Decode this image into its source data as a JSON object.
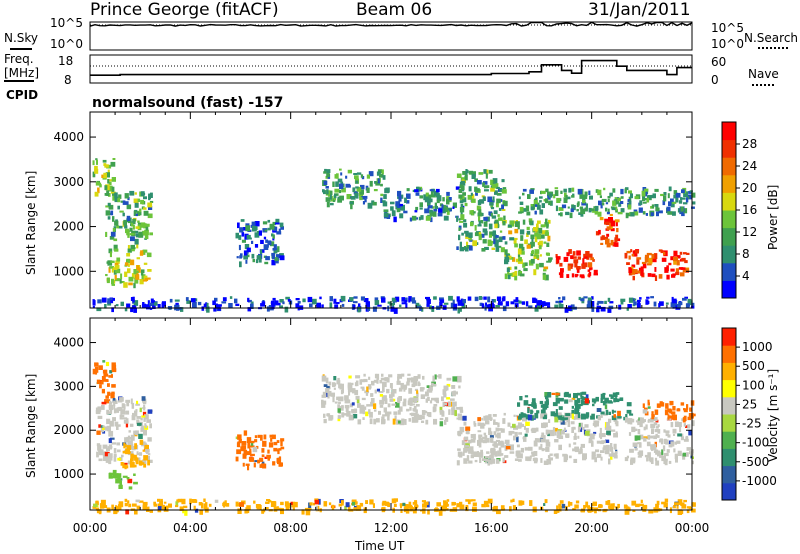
{
  "header": {
    "station": "Prince George (fitACF)",
    "beam": "Beam 06",
    "date": "31/Jan/2011"
  },
  "sky_panel": {
    "left_label": "N.Sky",
    "left_ticks": [
      "10^5",
      "10^0"
    ],
    "right_ticks": [
      "10^5",
      "10^0"
    ],
    "right_label": "N.Search",
    "series": [
      {
        "name": "N.Sky",
        "level": 0.88
      },
      {
        "name": "N.Search",
        "style": "dotted"
      }
    ]
  },
  "freq_panel": {
    "left_label_line1": "Freq.",
    "left_label_line2": "[MHz]",
    "left_ticks": [
      "18",
      "8"
    ],
    "right_ticks": [
      "60",
      "0"
    ],
    "right_label": "Nave",
    "cpid_label": "CPID",
    "mode_text": "normalsound (fast) -157"
  },
  "chart_data": [
    {
      "type": "heatmap",
      "name": "power",
      "ylabel": "Slant Range [km]",
      "yticks": [
        1000,
        2000,
        3000,
        4000
      ],
      "ylim": [
        180,
        4560
      ],
      "xlim": [
        0,
        24
      ],
      "colorbar": {
        "label": "Power [dB]",
        "ticks": [
          "28",
          "24",
          "20",
          "16",
          "12",
          "8",
          "4"
        ],
        "colors": [
          "#0000ff",
          "#1f4fbf",
          "#2f8f6f",
          "#3fa04f",
          "#6cc43a",
          "#d8d80f",
          "#f0a000",
          "#f06a00",
          "#f03000",
          "#ff0000"
        ]
      },
      "echo_regions": [
        {
          "t0": 0.1,
          "t1": 0.9,
          "r0": 2700,
          "r1": 3600,
          "level": 0.45
        },
        {
          "t0": 0.6,
          "t1": 2.4,
          "r0": 1700,
          "r1": 2800,
          "level": 0.35
        },
        {
          "t0": 0.6,
          "t1": 2.3,
          "r0": 700,
          "r1": 1600,
          "level": 0.5
        },
        {
          "t0": 5.8,
          "t1": 7.6,
          "r0": 1200,
          "r1": 2200,
          "level": 0.2
        },
        {
          "t0": 9.2,
          "t1": 11.7,
          "r0": 2500,
          "r1": 3300,
          "level": 0.3
        },
        {
          "t0": 11.7,
          "t1": 14.8,
          "r0": 2200,
          "r1": 2900,
          "level": 0.25
        },
        {
          "t0": 14.6,
          "t1": 16.5,
          "r0": 1500,
          "r1": 3300,
          "level": 0.35
        },
        {
          "t0": 16.5,
          "t1": 18.3,
          "r0": 900,
          "r1": 2200,
          "level": 0.45
        },
        {
          "t0": 17.0,
          "t1": 21.5,
          "r0": 2300,
          "r1": 2900,
          "level": 0.3
        },
        {
          "t0": 18.5,
          "t1": 20.1,
          "r0": 900,
          "r1": 1500,
          "level": 0.95
        },
        {
          "t0": 20.1,
          "t1": 21.0,
          "r0": 1600,
          "r1": 2300,
          "level": 0.8
        },
        {
          "t0": 21.3,
          "t1": 23.8,
          "r0": 900,
          "r1": 1500,
          "level": 0.85
        },
        {
          "t0": 21.5,
          "t1": 24.0,
          "r0": 2300,
          "r1": 2900,
          "level": 0.3
        },
        {
          "t0": 0.0,
          "t1": 24.0,
          "r0": 180,
          "r1": 450,
          "level": 0.1
        }
      ]
    },
    {
      "type": "heatmap",
      "name": "velocity",
      "ylabel": "Slant Range [km]",
      "yticks": [
        1000,
        2000,
        3000,
        4000
      ],
      "ylim": [
        180,
        4560
      ],
      "xlim": [
        0,
        24
      ],
      "xlabel": "Time UT",
      "xticks": [
        "00:00",
        "04:00",
        "08:00",
        "12:00",
        "16:00",
        "20:00",
        "00:00"
      ],
      "colorbar": {
        "label": "Velocity [m s⁻¹]",
        "ticks": [
          "1000",
          "500",
          "100",
          "25",
          "-25",
          "-100",
          "-500",
          "-1000"
        ],
        "colors": [
          "#2040c0",
          "#2f5f9f",
          "#2f8f6f",
          "#4fb04f",
          "#a8d840",
          "#c8c8c0",
          "#ffff00",
          "#ffb000",
          "#ff7000",
          "#ff2000"
        ]
      },
      "echo_regions": [
        {
          "t0": 0.1,
          "t1": 0.9,
          "r0": 2700,
          "r1": 3600,
          "color": "#ff7000"
        },
        {
          "t0": 0.2,
          "t1": 2.4,
          "r0": 1300,
          "r1": 2800,
          "color": "#c8c8c0"
        },
        {
          "t0": 1.2,
          "t1": 2.3,
          "r0": 1200,
          "r1": 1800,
          "color": "#ffb000"
        },
        {
          "t0": 0.7,
          "t1": 1.8,
          "r0": 700,
          "r1": 1100,
          "color": "#6cc43a"
        },
        {
          "t0": 5.8,
          "t1": 7.6,
          "r0": 1200,
          "r1": 2000,
          "color": "#ff7000"
        },
        {
          "t0": 9.2,
          "t1": 14.8,
          "r0": 2200,
          "r1": 3300,
          "color": "#c8c8c0"
        },
        {
          "t0": 14.6,
          "t1": 21.0,
          "r0": 1300,
          "r1": 2400,
          "color": "#c8c8c0"
        },
        {
          "t0": 17.0,
          "t1": 21.5,
          "r0": 2300,
          "r1": 2900,
          "color": "#2f8f6f"
        },
        {
          "t0": 21.3,
          "t1": 24.0,
          "r0": 1300,
          "r1": 2300,
          "color": "#c8c8c0"
        },
        {
          "t0": 22.0,
          "t1": 24.0,
          "r0": 2300,
          "r1": 2700,
          "color": "#ff7000"
        },
        {
          "t0": 0.0,
          "t1": 24.0,
          "r0": 180,
          "r1": 450,
          "color": "#ffb000"
        }
      ]
    }
  ]
}
